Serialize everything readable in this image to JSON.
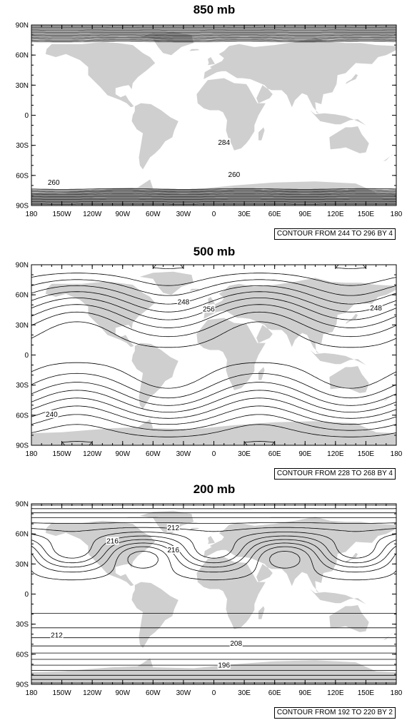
{
  "colors": {
    "land": "#cfcfcf",
    "contour": "#000000",
    "frame": "#000000",
    "background": "#ffffff"
  },
  "map_projection": "cylindrical-equidistant",
  "lat_ticks": [
    "90N",
    "60N",
    "30N",
    "0",
    "30S",
    "60S",
    "90S"
  ],
  "lon_ticks": [
    "180",
    "150W",
    "120W",
    "90W",
    "60W",
    "30W",
    "0",
    "30E",
    "60E",
    "90E",
    "120E",
    "150E",
    "180"
  ],
  "panels": [
    {
      "title": "850 mb",
      "info": "CONTOUR FROM 244 TO 296 BY 4",
      "contour_labels": [
        {
          "text": "284",
          "lon": 10,
          "lat": -28
        },
        {
          "text": "260",
          "lon": 20,
          "lat": -60
        },
        {
          "text": "260",
          "lon": -158,
          "lat": -68
        }
      ]
    },
    {
      "title": "500 mb",
      "info": "CONTOUR FROM 228 TO 268 BY 4",
      "contour_labels": [
        {
          "text": "248",
          "lon": -30,
          "lat": 52
        },
        {
          "text": "256",
          "lon": -5,
          "lat": 45
        },
        {
          "text": "248",
          "lon": 160,
          "lat": 46
        },
        {
          "text": "240",
          "lon": -160,
          "lat": -60
        }
      ]
    },
    {
      "title": "200 mb",
      "info": "CONTOUR FROM 192 TO 220 BY 2",
      "contour_labels": [
        {
          "text": "212",
          "lon": -40,
          "lat": 65
        },
        {
          "text": "216",
          "lon": -100,
          "lat": 52
        },
        {
          "text": "216",
          "lon": -40,
          "lat": 43
        },
        {
          "text": "212",
          "lon": -155,
          "lat": -42
        },
        {
          "text": "208",
          "lon": 22,
          "lat": -50
        },
        {
          "text": "196",
          "lon": 10,
          "lat": -72
        }
      ]
    }
  ]
}
